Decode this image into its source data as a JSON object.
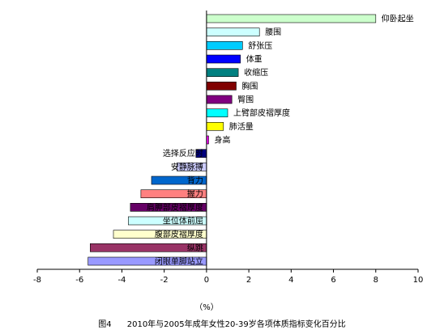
{
  "chart_data": {
    "type": "bar",
    "orientation": "horizontal",
    "categories": [
      "仰卧起坐",
      "腰围",
      "舒张压",
      "体重",
      "收缩压",
      "胸围",
      "臀围",
      "上臂部皮褶厚度",
      "肺活量",
      "身高",
      "选择反应时",
      "安静脉搏",
      "背力",
      "握力",
      "肩胛部皮褶厚度",
      "坐位体前屈",
      "腹部皮褶厚度",
      "纵跳",
      "闭眼单脚站立"
    ],
    "values": [
      8.0,
      2.5,
      1.7,
      1.6,
      1.5,
      1.4,
      1.2,
      1.0,
      0.8,
      0.1,
      -0.5,
      -1.4,
      -2.6,
      -3.1,
      -3.6,
      -3.7,
      -4.4,
      -5.5,
      -5.6
    ],
    "colors": [
      "#ccffcc",
      "#ccffff",
      "#00ccff",
      "#0000ff",
      "#008080",
      "#800000",
      "#800080",
      "#00ffff",
      "#ffff00",
      "#ff00ff",
      "#000080",
      "#ccccff",
      "#0066cc",
      "#ff8080",
      "#660066",
      "#ccffff",
      "#ffffcc",
      "#993366",
      "#9999ff"
    ],
    "xlim": [
      -8,
      10
    ],
    "xticks": [
      -8,
      -6,
      -4,
      -2,
      0,
      2,
      4,
      6,
      8,
      10
    ],
    "xlabel": "（%）",
    "grid": false
  },
  "caption": {
    "figure_no": "图4",
    "title": "2010年与2005年成年女性20-39岁各项体质指标变化百分比"
  }
}
